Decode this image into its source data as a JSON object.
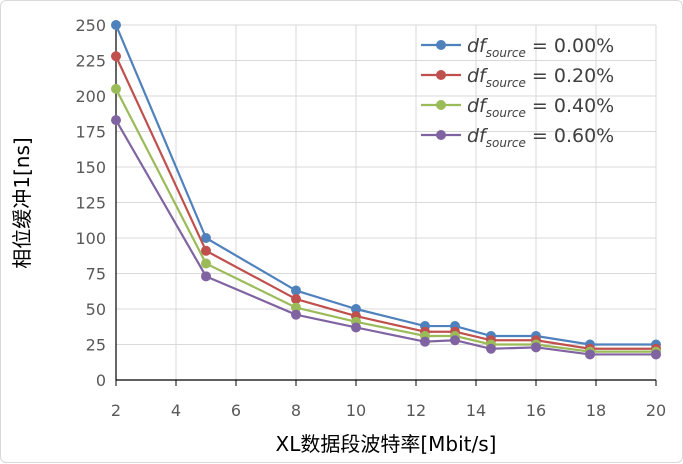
{
  "chart_data": {
    "type": "line",
    "xlabel": "XL数据段波特率[Mbit/s]",
    "ylabel": "相位缓冲1[ns]",
    "xlim": [
      2,
      20
    ],
    "ylim": [
      0,
      250
    ],
    "xticks": [
      "2",
      "4",
      "6",
      "8",
      "10",
      "12",
      "14",
      "16",
      "18",
      "20"
    ],
    "yticks": [
      "0",
      "25",
      "50",
      "75",
      "100",
      "125",
      "150",
      "175",
      "200",
      "225",
      "250"
    ],
    "x": [
      2,
      5,
      8,
      10,
      12.3,
      13.3,
      14.5,
      16,
      17.8,
      20
    ],
    "legend_position": "top-right",
    "series": [
      {
        "name": "df_source = 0.00%",
        "legend_main": "df",
        "legend_sub": "source",
        "legend_rest": " = 0.00%",
        "color": "#4f81bd",
        "values": [
          250,
          100,
          63,
          50,
          38,
          38,
          31,
          31,
          25,
          25
        ]
      },
      {
        "name": "df_source = 0.20%",
        "legend_main": "df",
        "legend_sub": "source",
        "legend_rest": " = 0.20%",
        "color": "#c0504d",
        "values": [
          228,
          91,
          57,
          45,
          34,
          34,
          28,
          28,
          22,
          22
        ]
      },
      {
        "name": "df_source = 0.40%",
        "legend_main": "df",
        "legend_sub": "source",
        "legend_rest": " = 0.40%",
        "color": "#9bbb59",
        "values": [
          205,
          82,
          51,
          41,
          31,
          31,
          25,
          25,
          20,
          20
        ]
      },
      {
        "name": "df_source = 0.60%",
        "legend_main": "df",
        "legend_sub": "source",
        "legend_rest": " = 0.60%",
        "color": "#8064a2",
        "values": [
          183,
          73,
          46,
          37,
          27,
          28,
          22,
          23,
          18,
          18
        ]
      }
    ]
  }
}
